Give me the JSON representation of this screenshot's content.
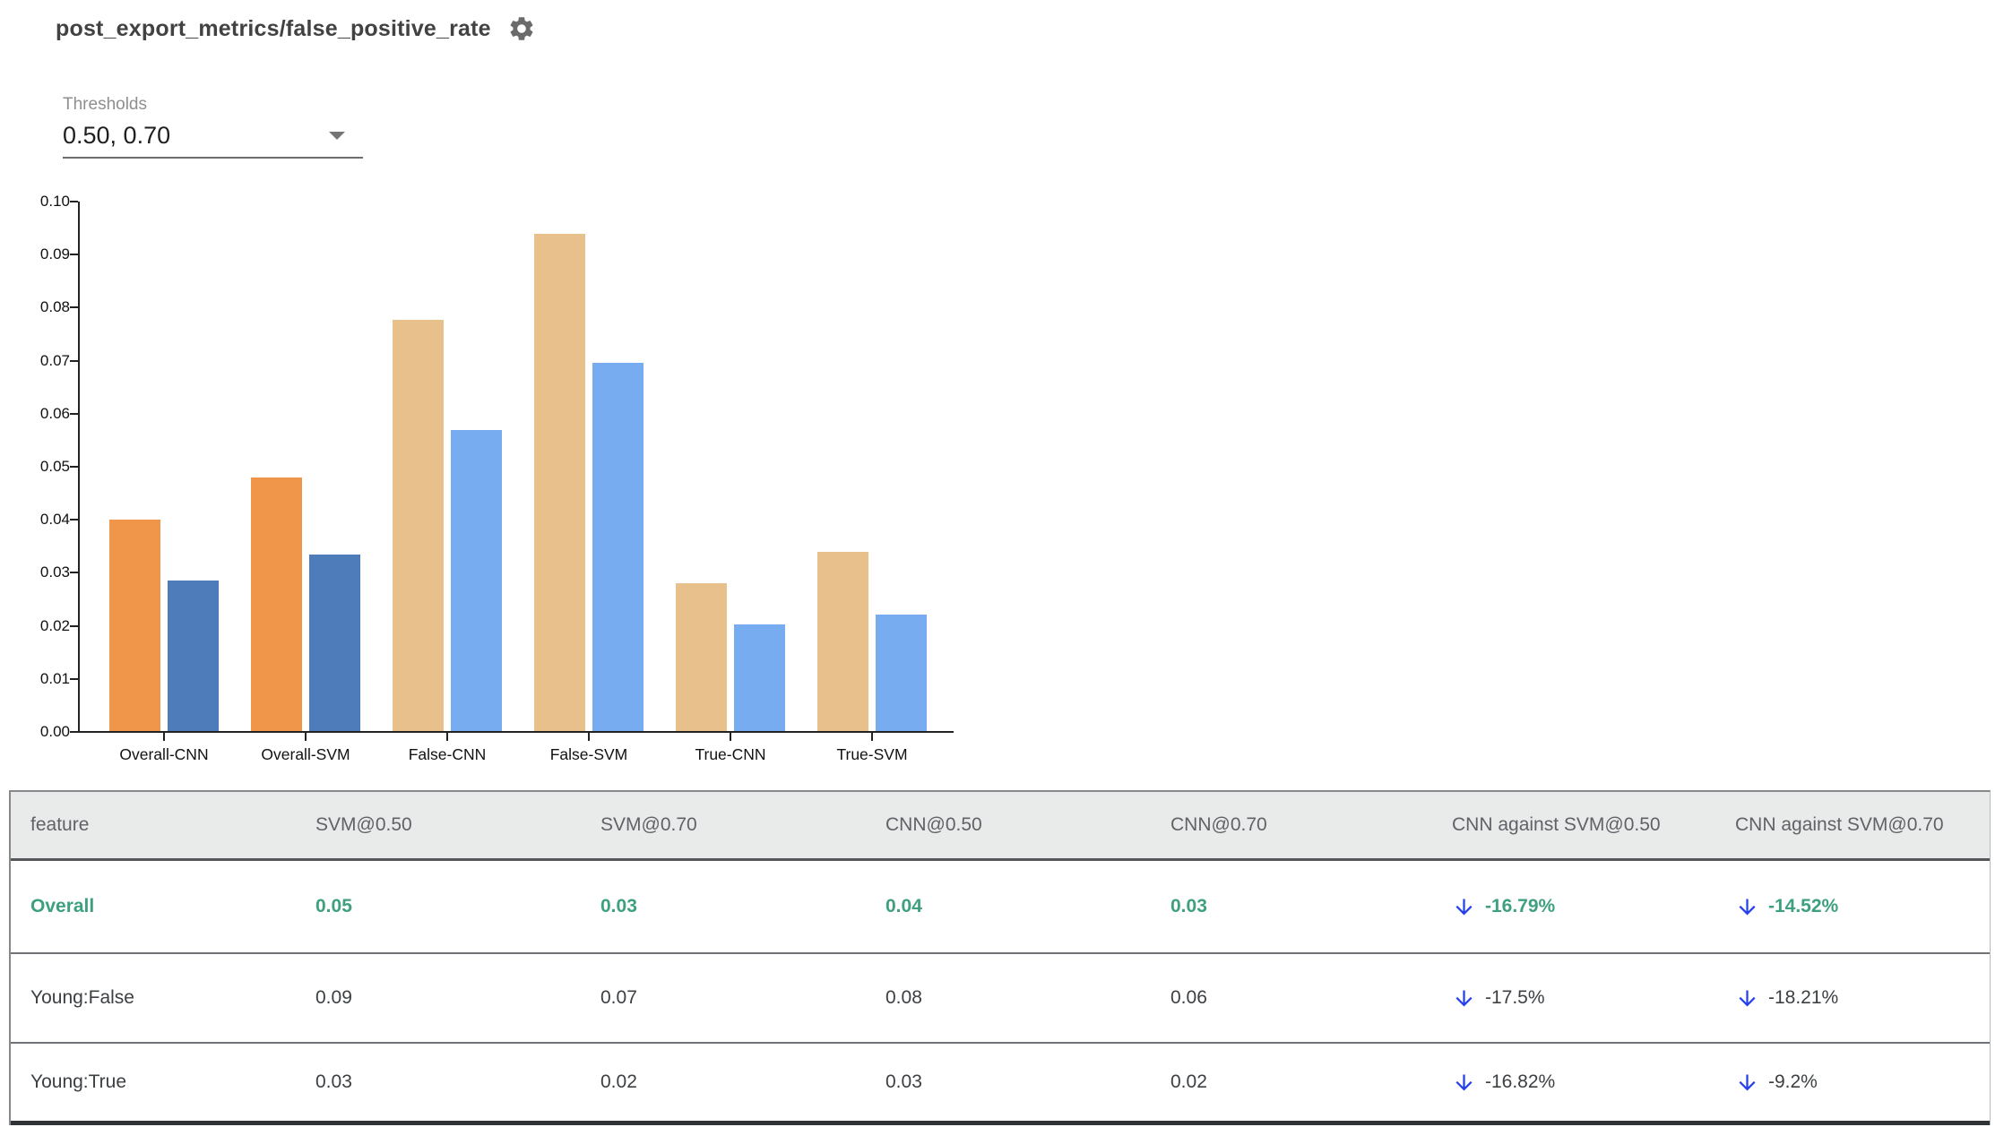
{
  "header": {
    "title": "post_export_metrics/false_positive_rate",
    "settings_icon": "gear-icon"
  },
  "thresholds": {
    "label": "Thresholds",
    "value": "0.50, 0.70",
    "dropdown_icon": "chevron-down-icon"
  },
  "chart_data": {
    "type": "bar",
    "title": "",
    "xlabel": "",
    "ylabel": "",
    "categories": [
      "Overall-CNN",
      "Overall-SVM",
      "False-CNN",
      "False-SVM",
      "True-CNN",
      "True-SVM"
    ],
    "series": [
      {
        "name": "threshold 0.50",
        "values": [
          0.0398,
          0.0478,
          0.0775,
          0.0937,
          0.0279,
          0.0338
        ]
      },
      {
        "name": "threshold 0.70",
        "values": [
          0.0283,
          0.0332,
          0.0567,
          0.0695,
          0.0201,
          0.022
        ]
      }
    ],
    "colors": [
      [
        "#F0964A",
        "#4E7CBA"
      ],
      [
        "#F0964A",
        "#4E7CBA"
      ],
      [
        "#E7C08C",
        "#77ADF0"
      ],
      [
        "#E7C08C",
        "#77ADF0"
      ],
      [
        "#E7C08C",
        "#77ADF0"
      ],
      [
        "#E7C08C",
        "#77ADF0"
      ]
    ],
    "ylim": [
      0,
      0.1
    ],
    "ytick_step": 0.01,
    "ytick_format": "0.00",
    "grid": false,
    "legend": "none"
  },
  "table": {
    "columns": [
      "feature",
      "SVM@0.50",
      "SVM@0.70",
      "CNN@0.50",
      "CNN@0.70",
      "CNN against SVM@0.50",
      "CNN against SVM@0.70"
    ],
    "rows": [
      {
        "feature": "Overall",
        "values": [
          "0.05",
          "0.03",
          "0.04",
          "0.03"
        ],
        "comparisons": [
          {
            "icon": "down-arrow-icon",
            "text": "-16.79%"
          },
          {
            "icon": "down-arrow-icon",
            "text": "-14.52%"
          }
        ],
        "emphasis": true
      },
      {
        "feature": "Young:False",
        "values": [
          "0.09",
          "0.07",
          "0.08",
          "0.06"
        ],
        "comparisons": [
          {
            "icon": "down-arrow-icon",
            "text": "-17.5%"
          },
          {
            "icon": "down-arrow-icon",
            "text": "-18.21%"
          }
        ],
        "emphasis": false
      },
      {
        "feature": "Young:True",
        "values": [
          "0.03",
          "0.02",
          "0.03",
          "0.02"
        ],
        "comparisons": [
          {
            "icon": "down-arrow-icon",
            "text": "-16.82%"
          },
          {
            "icon": "down-arrow-icon",
            "text": "-9.2%"
          }
        ],
        "emphasis": false
      }
    ]
  },
  "colors": {
    "orange": "#F0964A",
    "dark_blue": "#4E7CBA",
    "tan": "#E7C08C",
    "light_blue": "#77ADF0",
    "positive_green": "#3FA07E",
    "arrow_blue": "#2540EA",
    "header_text": "#5F6368",
    "body_text": "#3C4043",
    "header_bg": "#E9EAEA"
  }
}
